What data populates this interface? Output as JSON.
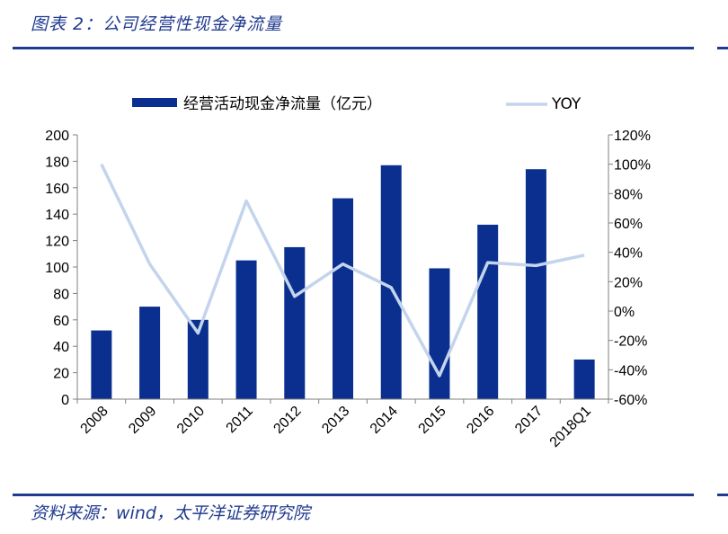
{
  "figure": {
    "title": "图表 2：公司经营性现金净流量",
    "source": "资料来源：wind，太平洋证券研究院"
  },
  "colors": {
    "bar": "#0a2f8f",
    "line": "#c3d4ec",
    "rule": "#1f3a8f",
    "axis": "#7f7f7f"
  },
  "chart_data": {
    "type": "bar",
    "title": "",
    "categories": [
      "2008",
      "2009",
      "2010",
      "2011",
      "2012",
      "2013",
      "2014",
      "2015",
      "2016",
      "2017",
      "2018Q1"
    ],
    "series": [
      {
        "name": "经营活动现金净流量（亿元）",
        "kind": "bar",
        "axis": "left",
        "values": [
          52,
          70,
          60,
          105,
          115,
          152,
          177,
          99,
          132,
          174,
          30
        ]
      },
      {
        "name": "YOY",
        "kind": "line",
        "axis": "right",
        "values": [
          100,
          32,
          -15,
          75,
          10,
          32,
          16,
          -44,
          33,
          31,
          38
        ]
      }
    ],
    "y_left": {
      "lim": [
        0,
        200
      ],
      "ticks": [
        "0",
        "20",
        "40",
        "60",
        "80",
        "100",
        "120",
        "140",
        "160",
        "180",
        "200"
      ]
    },
    "y_right": {
      "lim": [
        -60,
        120
      ],
      "ticks": [
        "-60%",
        "-40%",
        "-20%",
        "0%",
        "20%",
        "40%",
        "60%",
        "80%",
        "100%",
        "120%"
      ]
    },
    "legend_position": "top",
    "grid": false
  }
}
